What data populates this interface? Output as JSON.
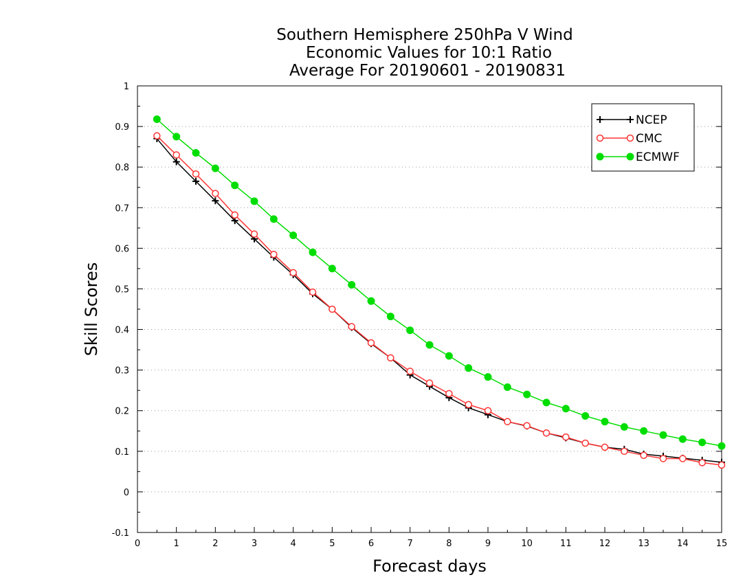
{
  "chart_data": {
    "type": "line",
    "title_lines": [
      "Southern Hemisphere 250hPa V Wind",
      "Economic Values for 10:1 Ratio",
      "Average For 20190601 - 20190831"
    ],
    "xlabel": "Forecast days",
    "ylabel": "Skill Scores",
    "xlim": [
      0,
      15
    ],
    "ylim": [
      -0.1,
      1
    ],
    "xticks": [
      "0",
      "1",
      "2",
      "3",
      "4",
      "5",
      "6",
      "7",
      "8",
      "9",
      "10",
      "11",
      "12",
      "13",
      "14",
      "15"
    ],
    "yticks": [
      "-0.1",
      "0",
      "0.1",
      "0.2",
      "0.3",
      "0.4",
      "0.5",
      "0.6",
      "0.7",
      "0.8",
      "0.9",
      "1"
    ],
    "grid": true,
    "legend_position": "top-right",
    "x": [
      0.5,
      1,
      1.5,
      2,
      2.5,
      3,
      3.5,
      4,
      4.5,
      5,
      5.5,
      6,
      6.5,
      7,
      7.5,
      8,
      8.5,
      9,
      9.5,
      10,
      10.5,
      11,
      11.5,
      12,
      12.5,
      13,
      13.5,
      14,
      14.5,
      15
    ],
    "series": [
      {
        "name": "NCEP",
        "color": "#000000",
        "marker": "plus",
        "values": [
          0.87,
          0.813,
          0.765,
          0.717,
          0.668,
          0.623,
          0.578,
          0.535,
          0.488,
          0.45,
          0.405,
          0.365,
          0.33,
          0.288,
          0.26,
          0.232,
          0.207,
          0.19,
          0.173,
          0.162,
          0.145,
          0.133,
          0.12,
          0.11,
          0.105,
          0.093,
          0.088,
          0.083,
          0.078,
          0.073
        ]
      },
      {
        "name": "CMC",
        "color": "#ff3333",
        "marker": "open-circle",
        "values": [
          0.877,
          0.83,
          0.783,
          0.735,
          0.682,
          0.635,
          0.585,
          0.54,
          0.492,
          0.45,
          0.407,
          0.367,
          0.33,
          0.297,
          0.268,
          0.242,
          0.215,
          0.2,
          0.173,
          0.163,
          0.145,
          0.135,
          0.12,
          0.11,
          0.1,
          0.09,
          0.082,
          0.082,
          0.072,
          0.066
        ]
      },
      {
        "name": "ECMWF",
        "color": "#00dd00",
        "marker": "filled-circle",
        "values": [
          0.918,
          0.875,
          0.835,
          0.797,
          0.755,
          0.716,
          0.672,
          0.632,
          0.59,
          0.55,
          0.51,
          0.47,
          0.432,
          0.398,
          0.362,
          0.335,
          0.305,
          0.283,
          0.258,
          0.24,
          0.22,
          0.205,
          0.187,
          0.173,
          0.16,
          0.15,
          0.14,
          0.13,
          0.122,
          0.113
        ]
      }
    ]
  }
}
